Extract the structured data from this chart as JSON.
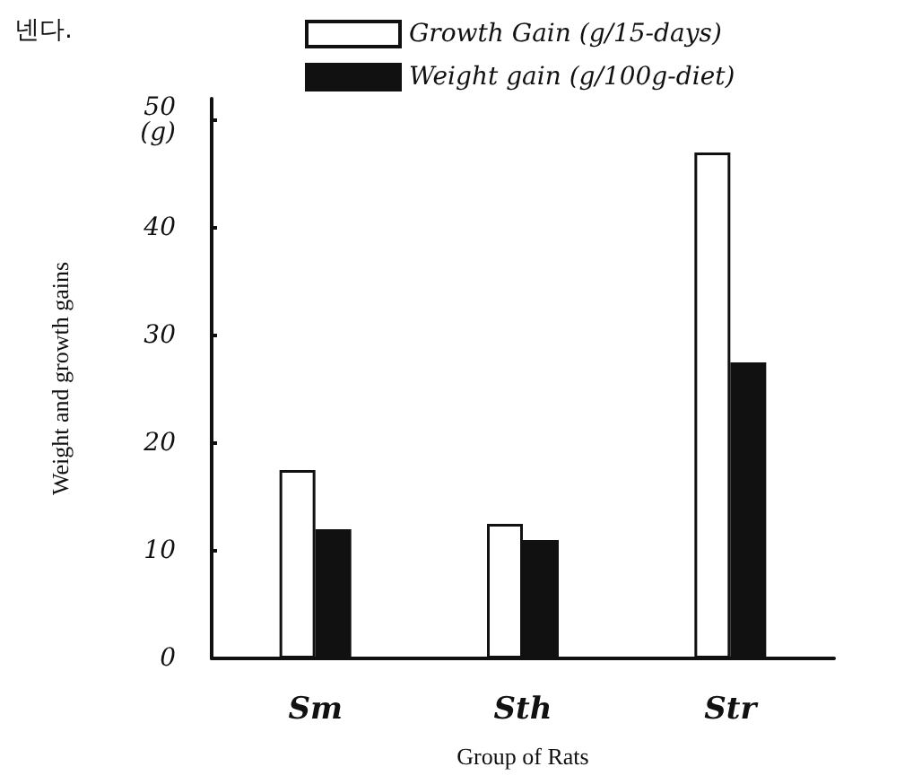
{
  "chart_data": {
    "type": "bar",
    "xlabel": "Group of Rats",
    "ylabel": "Weight and growth gains",
    "categories": [
      "Sm",
      "Sth",
      "Str"
    ],
    "series": [
      {
        "name": "Growth Gain (g/15-days)",
        "color": "#ffffff",
        "values": [
          17.5,
          12.5,
          47
        ]
      },
      {
        "name": "Weight gain (g/100g-diet)",
        "color": "#111111",
        "values": [
          12,
          11,
          27.5
        ]
      }
    ],
    "ylim": [
      0,
      52
    ],
    "yticks": [
      0,
      10,
      20,
      30,
      40,
      {
        "value": 50,
        "label": "50\n(g)"
      }
    ],
    "grid": false,
    "legend": "top",
    "annotations": [
      "넨다."
    ]
  }
}
